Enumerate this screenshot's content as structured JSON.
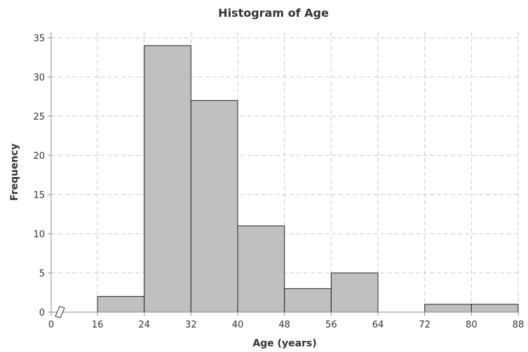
{
  "chart_data": {
    "type": "bar",
    "title": "Histogram of Age",
    "xlabel": "Age (years)",
    "ylabel": "Frequency",
    "xlim": [
      0,
      88
    ],
    "ylim": [
      0,
      36
    ],
    "x_ticks": [
      "0",
      "16",
      "24",
      "32",
      "40",
      "48",
      "56",
      "64",
      "72",
      "80",
      "88"
    ],
    "y_ticks": [
      "0",
      "5",
      "10",
      "15",
      "20",
      "25",
      "30",
      "35"
    ],
    "bins": [
      {
        "start": 16,
        "end": 24,
        "value": 2
      },
      {
        "start": 24,
        "end": 32,
        "value": 34
      },
      {
        "start": 32,
        "end": 40,
        "value": 27
      },
      {
        "start": 40,
        "end": 48,
        "value": 11
      },
      {
        "start": 48,
        "end": 56,
        "value": 3
      },
      {
        "start": 56,
        "end": 64,
        "value": 5
      },
      {
        "start": 64,
        "end": 72,
        "value": 0
      },
      {
        "start": 72,
        "end": 80,
        "value": 1
      },
      {
        "start": 80,
        "end": 88,
        "value": 1
      }
    ],
    "grid": true,
    "axis_break": true,
    "bar_color": "#c0c0c0"
  }
}
